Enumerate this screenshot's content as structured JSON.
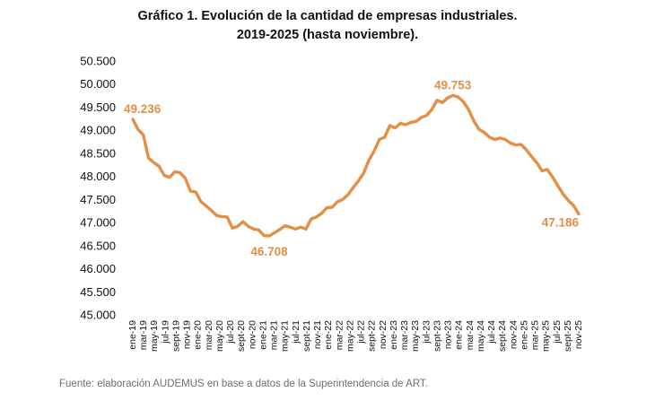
{
  "chart_data": {
    "type": "line",
    "title": "Gráfico 1. Evolución de la cantidad de empresas industriales.",
    "subtitle": "2019-2025 (hasta noviembre).",
    "xlabel": "",
    "ylabel": "",
    "ylim": [
      45000,
      50500
    ],
    "grid": false,
    "legend": "none",
    "color": "#E38F45",
    "yticks": [
      "45.000",
      "45.500",
      "46.000",
      "46.500",
      "47.000",
      "47.500",
      "48.000",
      "48.500",
      "49.000",
      "49.500",
      "50.000",
      "50.500"
    ],
    "xticks": [
      "ene-19",
      "mar-19",
      "may-19",
      "jul-19",
      "sept-19",
      "nov-19",
      "ene-20",
      "mar-20",
      "may-20",
      "jul-20",
      "sept-20",
      "nov-20",
      "ene-21",
      "mar-21",
      "may-21",
      "jul-21",
      "sept-21",
      "nov-21",
      "ene-22",
      "mar-22",
      "may-22",
      "jul-22",
      "sept-22",
      "nov-22",
      "ene-23",
      "mar-23",
      "may-23",
      "jul-23",
      "sept-23",
      "nov-23",
      "ene-24",
      "mar-24",
      "may-24",
      "jul-24",
      "sept-24",
      "nov-24",
      "ene-25",
      "mar-25",
      "may-25",
      "jul-25",
      "sept-25",
      "nov-25"
    ],
    "series": [
      {
        "values": [
          49236,
          49020,
          48900,
          48400,
          48300,
          48220,
          48020,
          47980,
          48100,
          48080,
          47960,
          47680,
          47660,
          47450,
          47360,
          47260,
          47150,
          47130,
          47120,
          46880,
          46920,
          47020,
          46920,
          46860,
          46840,
          46720,
          46708,
          46780,
          46850,
          46930,
          46900,
          46860,
          46900,
          46860,
          47080,
          47120,
          47200,
          47320,
          47330,
          47450,
          47500,
          47600,
          47760,
          47900,
          48070,
          48350,
          48550,
          48800,
          48850,
          49100,
          49050,
          49150,
          49120,
          49170,
          49190,
          49280,
          49320,
          49450,
          49650,
          49600,
          49700,
          49753,
          49720,
          49620,
          49450,
          49200,
          49020,
          48950,
          48850,
          48800,
          48830,
          48800,
          48720,
          48680,
          48690,
          48580,
          48430,
          48300,
          48120,
          48150,
          47990,
          47800,
          47620,
          47480,
          47370,
          47186
        ]
      }
    ],
    "annotations": [
      {
        "text": "49.236",
        "value": 49236,
        "point": "ene-19"
      },
      {
        "text": "46.708",
        "value": 46708,
        "point": "mar-21"
      },
      {
        "text": "49.753",
        "value": 49753,
        "point": "dic-23"
      },
      {
        "text": "47.186",
        "value": 47186,
        "point": "nov-25"
      }
    ]
  },
  "source": "Fuente: elaboración AUDEMUS en base a datos de la Superintendencia de ART."
}
